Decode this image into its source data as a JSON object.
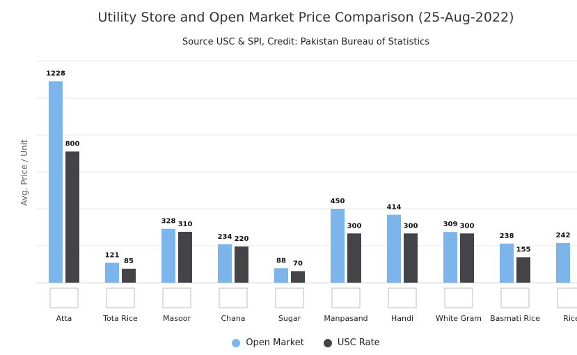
{
  "chart_data": {
    "type": "bar",
    "title": "Utility Store and Open Market Price Comparison (25-Aug-2022)",
    "subtitle": "Source USC & SPI, Credit: Pakistan Bureau of Statistics",
    "ylabel": "Avg. Price / Unit",
    "ylim": [
      0,
      1350
    ],
    "grid": true,
    "legend_position": "bottom",
    "categories": [
      "Atta",
      "Tota Rice",
      "Masoor",
      "Chana",
      "Sugar",
      "Manpasand",
      "Handi",
      "White Gram",
      "Basmati Rice",
      "Rice"
    ],
    "series": [
      {
        "name": "Open Market",
        "color": "#7cb5ec",
        "values": [
          1228,
          121,
          328,
          234,
          88,
          450,
          414,
          309,
          238,
          242
        ]
      },
      {
        "name": "USC Rate",
        "color": "#434348",
        "values": [
          800,
          85,
          310,
          220,
          70,
          300,
          300,
          300,
          155,
          null
        ]
      }
    ]
  }
}
